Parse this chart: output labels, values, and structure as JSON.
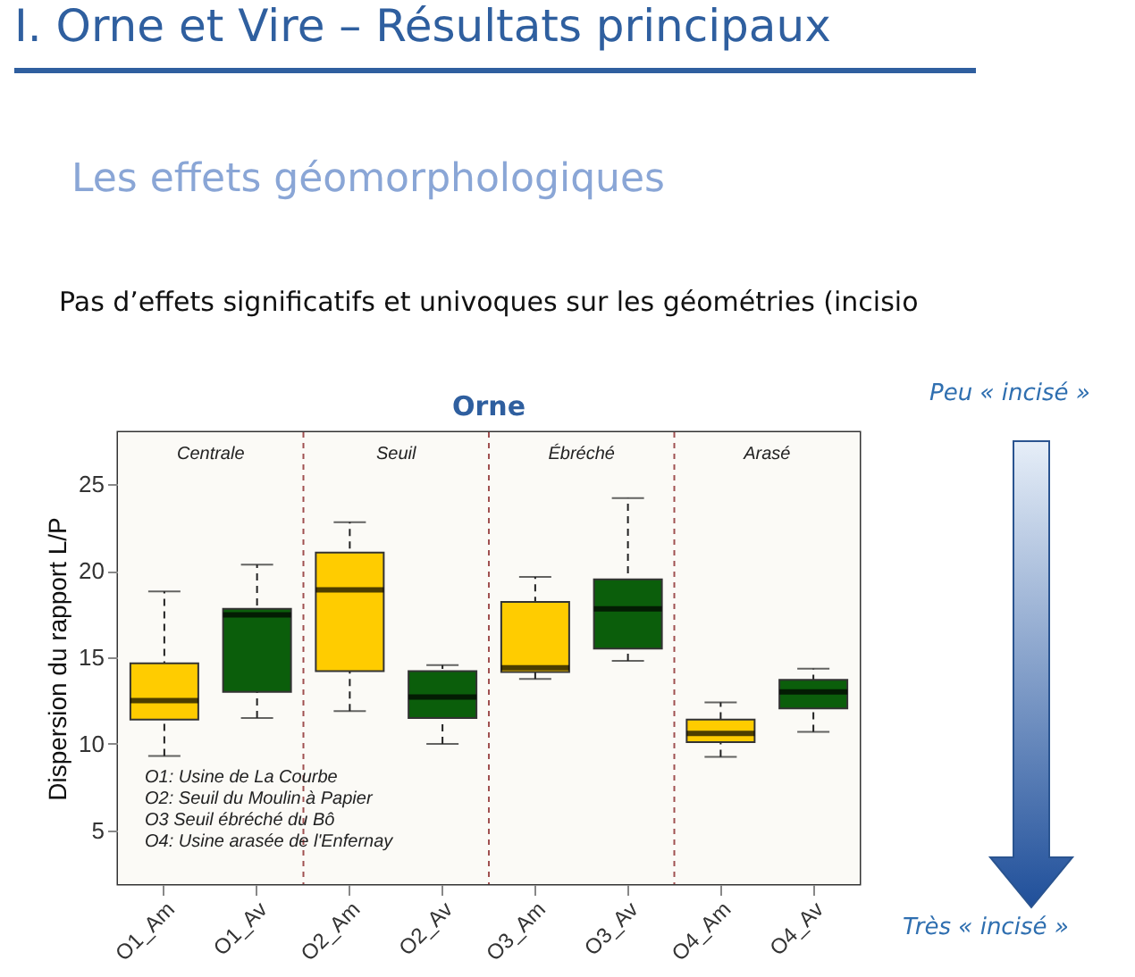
{
  "chart_data": {
    "type": "box",
    "title": "Orne",
    "ylabel": "Dispersion du rapport L/P",
    "categories": [
      "O1_Am",
      "O1_Av",
      "O2_Am",
      "O2_Av",
      "O3_Am",
      "O3_Av",
      "O4_Am",
      "O4_Av"
    ],
    "colors": [
      "#ffcc00",
      "#0b5e0b",
      "#ffcc00",
      "#0b5e0b",
      "#ffcc00",
      "#0b5e0b",
      "#ffcc00",
      "#0b5e0b"
    ],
    "boxes": [
      {
        "low": 9.3,
        "q1": 11.4,
        "median": 12.5,
        "q3": 14.65,
        "high": 18.8
      },
      {
        "low": 11.5,
        "q1": 13.0,
        "median": 17.45,
        "q3": 17.8,
        "high": 20.35
      },
      {
        "low": 11.9,
        "q1": 14.2,
        "median": 18.9,
        "q3": 21.05,
        "high": 22.8
      },
      {
        "low": 10.0,
        "q1": 11.5,
        "median": 12.7,
        "q3": 14.2,
        "high": 14.55
      },
      {
        "low": 13.75,
        "q1": 14.15,
        "median": 14.4,
        "q3": 18.2,
        "high": 19.65
      },
      {
        "low": 14.8,
        "q1": 15.5,
        "median": 17.8,
        "q3": 19.5,
        "high": 24.2
      },
      {
        "low": 9.25,
        "q1": 10.1,
        "median": 10.6,
        "q3": 11.4,
        "high": 12.4
      },
      {
        "low": 10.7,
        "q1": 12.05,
        "median": 13.0,
        "q3": 13.7,
        "high": 14.35
      }
    ],
    "ylim": [
      1.9,
      28
    ],
    "yticks": [
      5,
      10,
      15,
      20,
      25
    ],
    "grid": false,
    "bands": [
      {
        "axis": "x",
        "from": "O1_Am",
        "to": "O1_Av",
        "label": "Centrale"
      },
      {
        "axis": "x",
        "from": "O2_Am",
        "to": "O2_Av",
        "label": "Seuil"
      },
      {
        "axis": "x",
        "from": "O3_Am",
        "to": "O3_Av",
        "label": "Ébréché"
      },
      {
        "axis": "x",
        "from": "O4_Am",
        "to": "O4_Av",
        "label": "Arasé"
      }
    ],
    "annotations": [
      "I. Orne et Vire – Résultats principaux",
      "Les effets géomorphologiques",
      "Pas d’effets significatifs et univoques sur les géométries (incisio",
      "O1: Usine de La Courbe",
      "O2: Seuil du Moulin à Papier",
      "O3 Seuil ébréché du Bô",
      "O4: Usine arasée de l'Enfernay",
      "Peu « incisé »",
      "Très « incisé »"
    ]
  }
}
